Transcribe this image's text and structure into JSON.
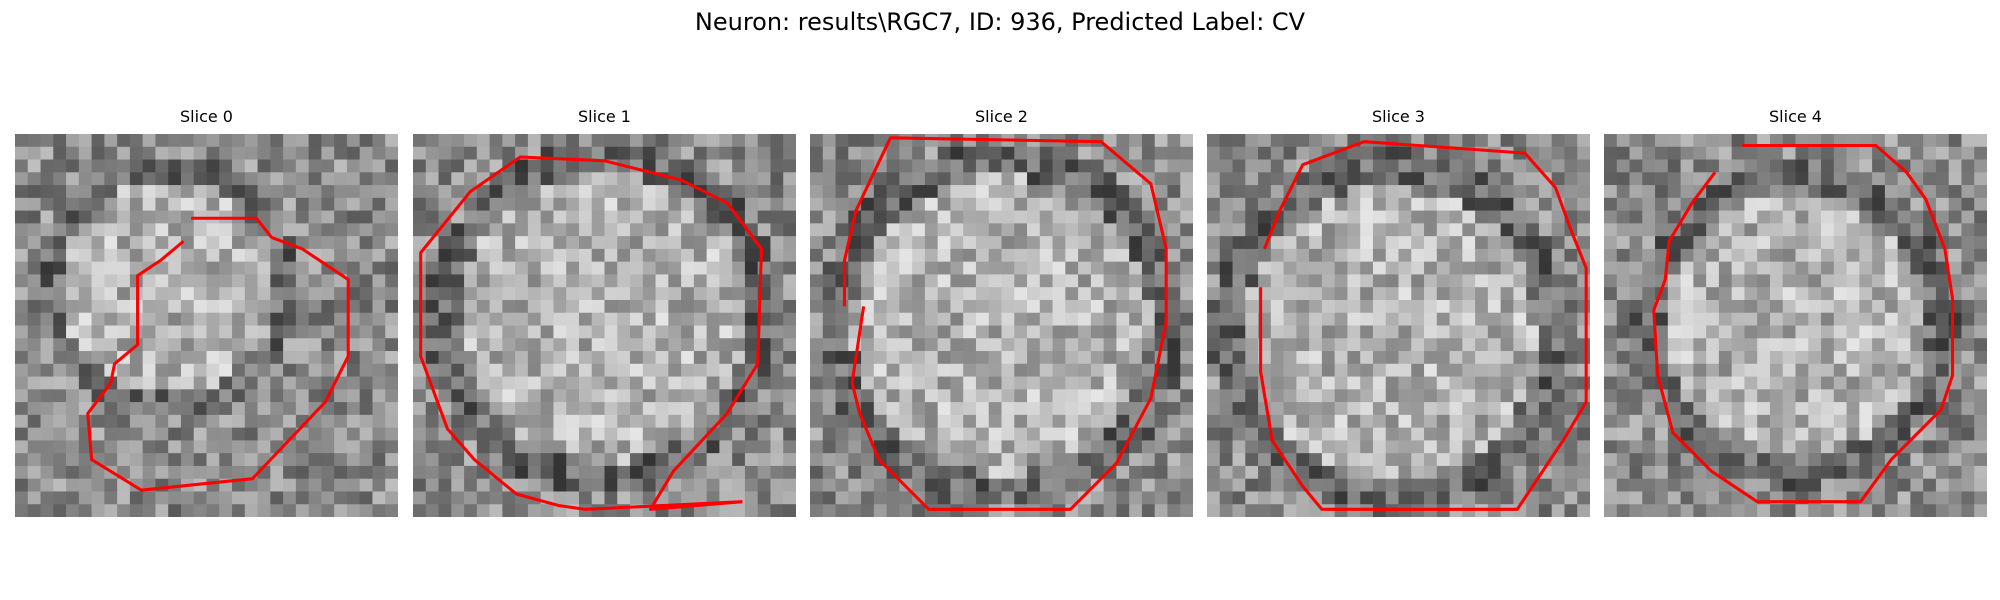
{
  "figure": {
    "title": "Neuron: results\\RGC7, ID: 936, Predicted Label: CV"
  },
  "panels": [
    {
      "title": "Slice 0",
      "seed": 11,
      "center": [
        0.4,
        0.4
      ],
      "radius": 0.33,
      "contour": [
        [
          0.46,
          0.22
        ],
        [
          0.63,
          0.22
        ],
        [
          0.67,
          0.27
        ],
        [
          0.75,
          0.3
        ],
        [
          0.87,
          0.38
        ],
        [
          0.87,
          0.58
        ],
        [
          0.81,
          0.7
        ],
        [
          0.62,
          0.9
        ],
        [
          0.33,
          0.93
        ],
        [
          0.2,
          0.85
        ],
        [
          0.19,
          0.73
        ],
        [
          0.25,
          0.65
        ],
        [
          0.26,
          0.6
        ],
        [
          0.32,
          0.55
        ],
        [
          0.32,
          0.37
        ],
        [
          0.38,
          0.33
        ],
        [
          0.44,
          0.28
        ]
      ]
    },
    {
      "title": "Slice 1",
      "seed": 23,
      "center": [
        0.5,
        0.48
      ],
      "radius": 0.44,
      "contour": [
        [
          0.86,
          0.96
        ],
        [
          0.62,
          0.98
        ],
        [
          0.68,
          0.88
        ],
        [
          0.82,
          0.73
        ],
        [
          0.9,
          0.6
        ],
        [
          0.91,
          0.3
        ],
        [
          0.82,
          0.18
        ],
        [
          0.7,
          0.12
        ],
        [
          0.5,
          0.07
        ],
        [
          0.28,
          0.06
        ],
        [
          0.15,
          0.15
        ],
        [
          0.02,
          0.31
        ],
        [
          0.02,
          0.58
        ],
        [
          0.09,
          0.77
        ],
        [
          0.16,
          0.85
        ],
        [
          0.27,
          0.94
        ],
        [
          0.38,
          0.97
        ],
        [
          0.45,
          0.98
        ],
        [
          0.86,
          0.96
        ]
      ]
    },
    {
      "title": "Slice 2",
      "seed": 37,
      "center": [
        0.5,
        0.5
      ],
      "radius": 0.46,
      "contour": [
        [
          0.14,
          0.45
        ],
        [
          0.11,
          0.65
        ],
        [
          0.13,
          0.73
        ],
        [
          0.18,
          0.85
        ],
        [
          0.31,
          0.98
        ],
        [
          0.68,
          0.98
        ],
        [
          0.8,
          0.86
        ],
        [
          0.89,
          0.69
        ],
        [
          0.93,
          0.49
        ],
        [
          0.93,
          0.3
        ],
        [
          0.89,
          0.13
        ],
        [
          0.76,
          0.02
        ],
        [
          0.21,
          0.01
        ],
        [
          0.12,
          0.2
        ],
        [
          0.09,
          0.33
        ],
        [
          0.09,
          0.45
        ]
      ]
    },
    {
      "title": "Slice 3",
      "seed": 53,
      "center": [
        0.48,
        0.52
      ],
      "radius": 0.45,
      "contour": [
        [
          0.14,
          0.4
        ],
        [
          0.14,
          0.62
        ],
        [
          0.17,
          0.8
        ],
        [
          0.25,
          0.92
        ],
        [
          0.3,
          0.98
        ],
        [
          0.81,
          0.98
        ],
        [
          0.93,
          0.8
        ],
        [
          0.99,
          0.7
        ],
        [
          0.99,
          0.35
        ],
        [
          0.95,
          0.25
        ],
        [
          0.91,
          0.14
        ],
        [
          0.83,
          0.05
        ],
        [
          0.41,
          0.02
        ],
        [
          0.25,
          0.08
        ],
        [
          0.19,
          0.2
        ],
        [
          0.15,
          0.3
        ]
      ]
    },
    {
      "title": "Slice 4",
      "seed": 71,
      "center": [
        0.5,
        0.5
      ],
      "radius": 0.4,
      "contour": [
        [
          0.36,
          0.03
        ],
        [
          0.71,
          0.03
        ],
        [
          0.79,
          0.1
        ],
        [
          0.84,
          0.17
        ],
        [
          0.89,
          0.3
        ],
        [
          0.91,
          0.43
        ],
        [
          0.91,
          0.63
        ],
        [
          0.88,
          0.72
        ],
        [
          0.82,
          0.78
        ],
        [
          0.75,
          0.85
        ],
        [
          0.67,
          0.96
        ],
        [
          0.4,
          0.96
        ],
        [
          0.28,
          0.88
        ],
        [
          0.18,
          0.78
        ],
        [
          0.14,
          0.63
        ],
        [
          0.13,
          0.46
        ],
        [
          0.16,
          0.38
        ],
        [
          0.17,
          0.28
        ],
        [
          0.23,
          0.18
        ],
        [
          0.29,
          0.1
        ]
      ]
    }
  ],
  "colors": {
    "contour": "#ff0000"
  }
}
